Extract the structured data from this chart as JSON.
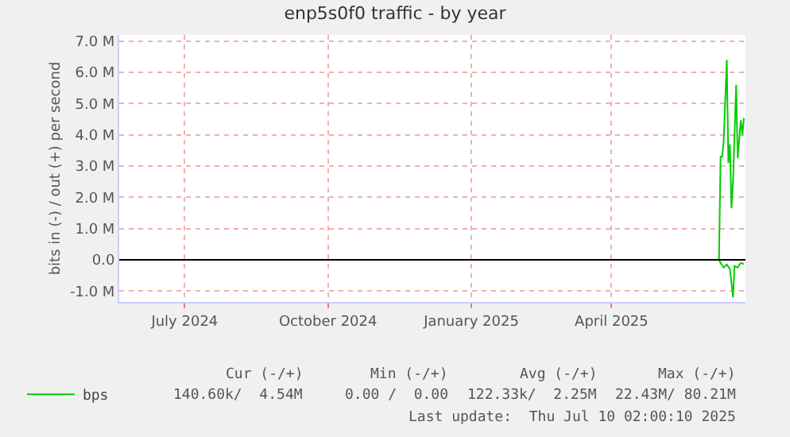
{
  "chart_data": {
    "type": "line",
    "title": "enp5s0f0 traffic - by year",
    "ylabel": "bits in (-) / out (+) per second",
    "xlim": [
      "2024-06-03",
      "2025-07-10"
    ],
    "xticks": [
      {
        "value": "2024-07-15",
        "label": "July 2024"
      },
      {
        "value": "2024-10-15",
        "label": "October 2024"
      },
      {
        "value": "2025-01-15",
        "label": "January 2025"
      },
      {
        "value": "2025-04-15",
        "label": "April 2025"
      }
    ],
    "ylim": [
      -1350000,
      7200000
    ],
    "yticks": [
      {
        "value": -1000000,
        "label": "-1.0 M"
      },
      {
        "value": 0,
        "label": "0.0"
      },
      {
        "value": 1000000,
        "label": "1.0 M"
      },
      {
        "value": 2000000,
        "label": "2.0 M"
      },
      {
        "value": 3000000,
        "label": "3.0 M"
      },
      {
        "value": 4000000,
        "label": "4.0 M"
      },
      {
        "value": 5000000,
        "label": "5.0 M"
      },
      {
        "value": 6000000,
        "label": "6.0 M"
      },
      {
        "value": 7000000,
        "label": "7.0 M"
      }
    ],
    "series": [
      {
        "name": "bps",
        "color": "#00cc00",
        "x": [
          "2025-06-22",
          "2025-06-23",
          "2025-06-24",
          "2025-06-25",
          "2025-06-26",
          "2025-06-28",
          "2025-06-29",
          "2025-06-30",
          "2025-07-01",
          "2025-07-02",
          "2025-07-04",
          "2025-07-05",
          "2025-07-07",
          "2025-07-08",
          "2025-07-09"
        ],
        "values": [
          0,
          0,
          3300000,
          3300000,
          3800000,
          6400000,
          3100000,
          3700000,
          1650000,
          2500000,
          5600000,
          3250000,
          4470000,
          4000000,
          4540000
        ]
      },
      {
        "color": "#00cc00",
        "x": [
          "2025-06-22",
          "2025-06-23",
          "2025-06-24",
          "2025-06-26",
          "2025-06-28",
          "2025-06-30",
          "2025-07-02",
          "2025-07-03",
          "2025-07-05",
          "2025-07-07",
          "2025-07-09"
        ],
        "values": [
          0,
          0,
          -100000,
          -250000,
          -150000,
          -300000,
          -1200000,
          -200000,
          -250000,
          -100000,
          -140000
        ]
      }
    ],
    "ref_lines": [
      {
        "axis": "y",
        "value": 0,
        "color": "#000000"
      }
    ],
    "grid": true,
    "legend": "bottom left",
    "marker": "none",
    "line_style": "solid",
    "annotations": [
      "Cur (-/+)",
      "Min (-/+)",
      "Avg (-/+)",
      "Max (-/+)",
      "140.60k/  4.54M",
      "0.00 /  0.00",
      "122.33k/  2.25M",
      "22.43M/ 80.21M",
      "Last update:  Thu Jul 10 02:00:10 2025"
    ]
  }
}
